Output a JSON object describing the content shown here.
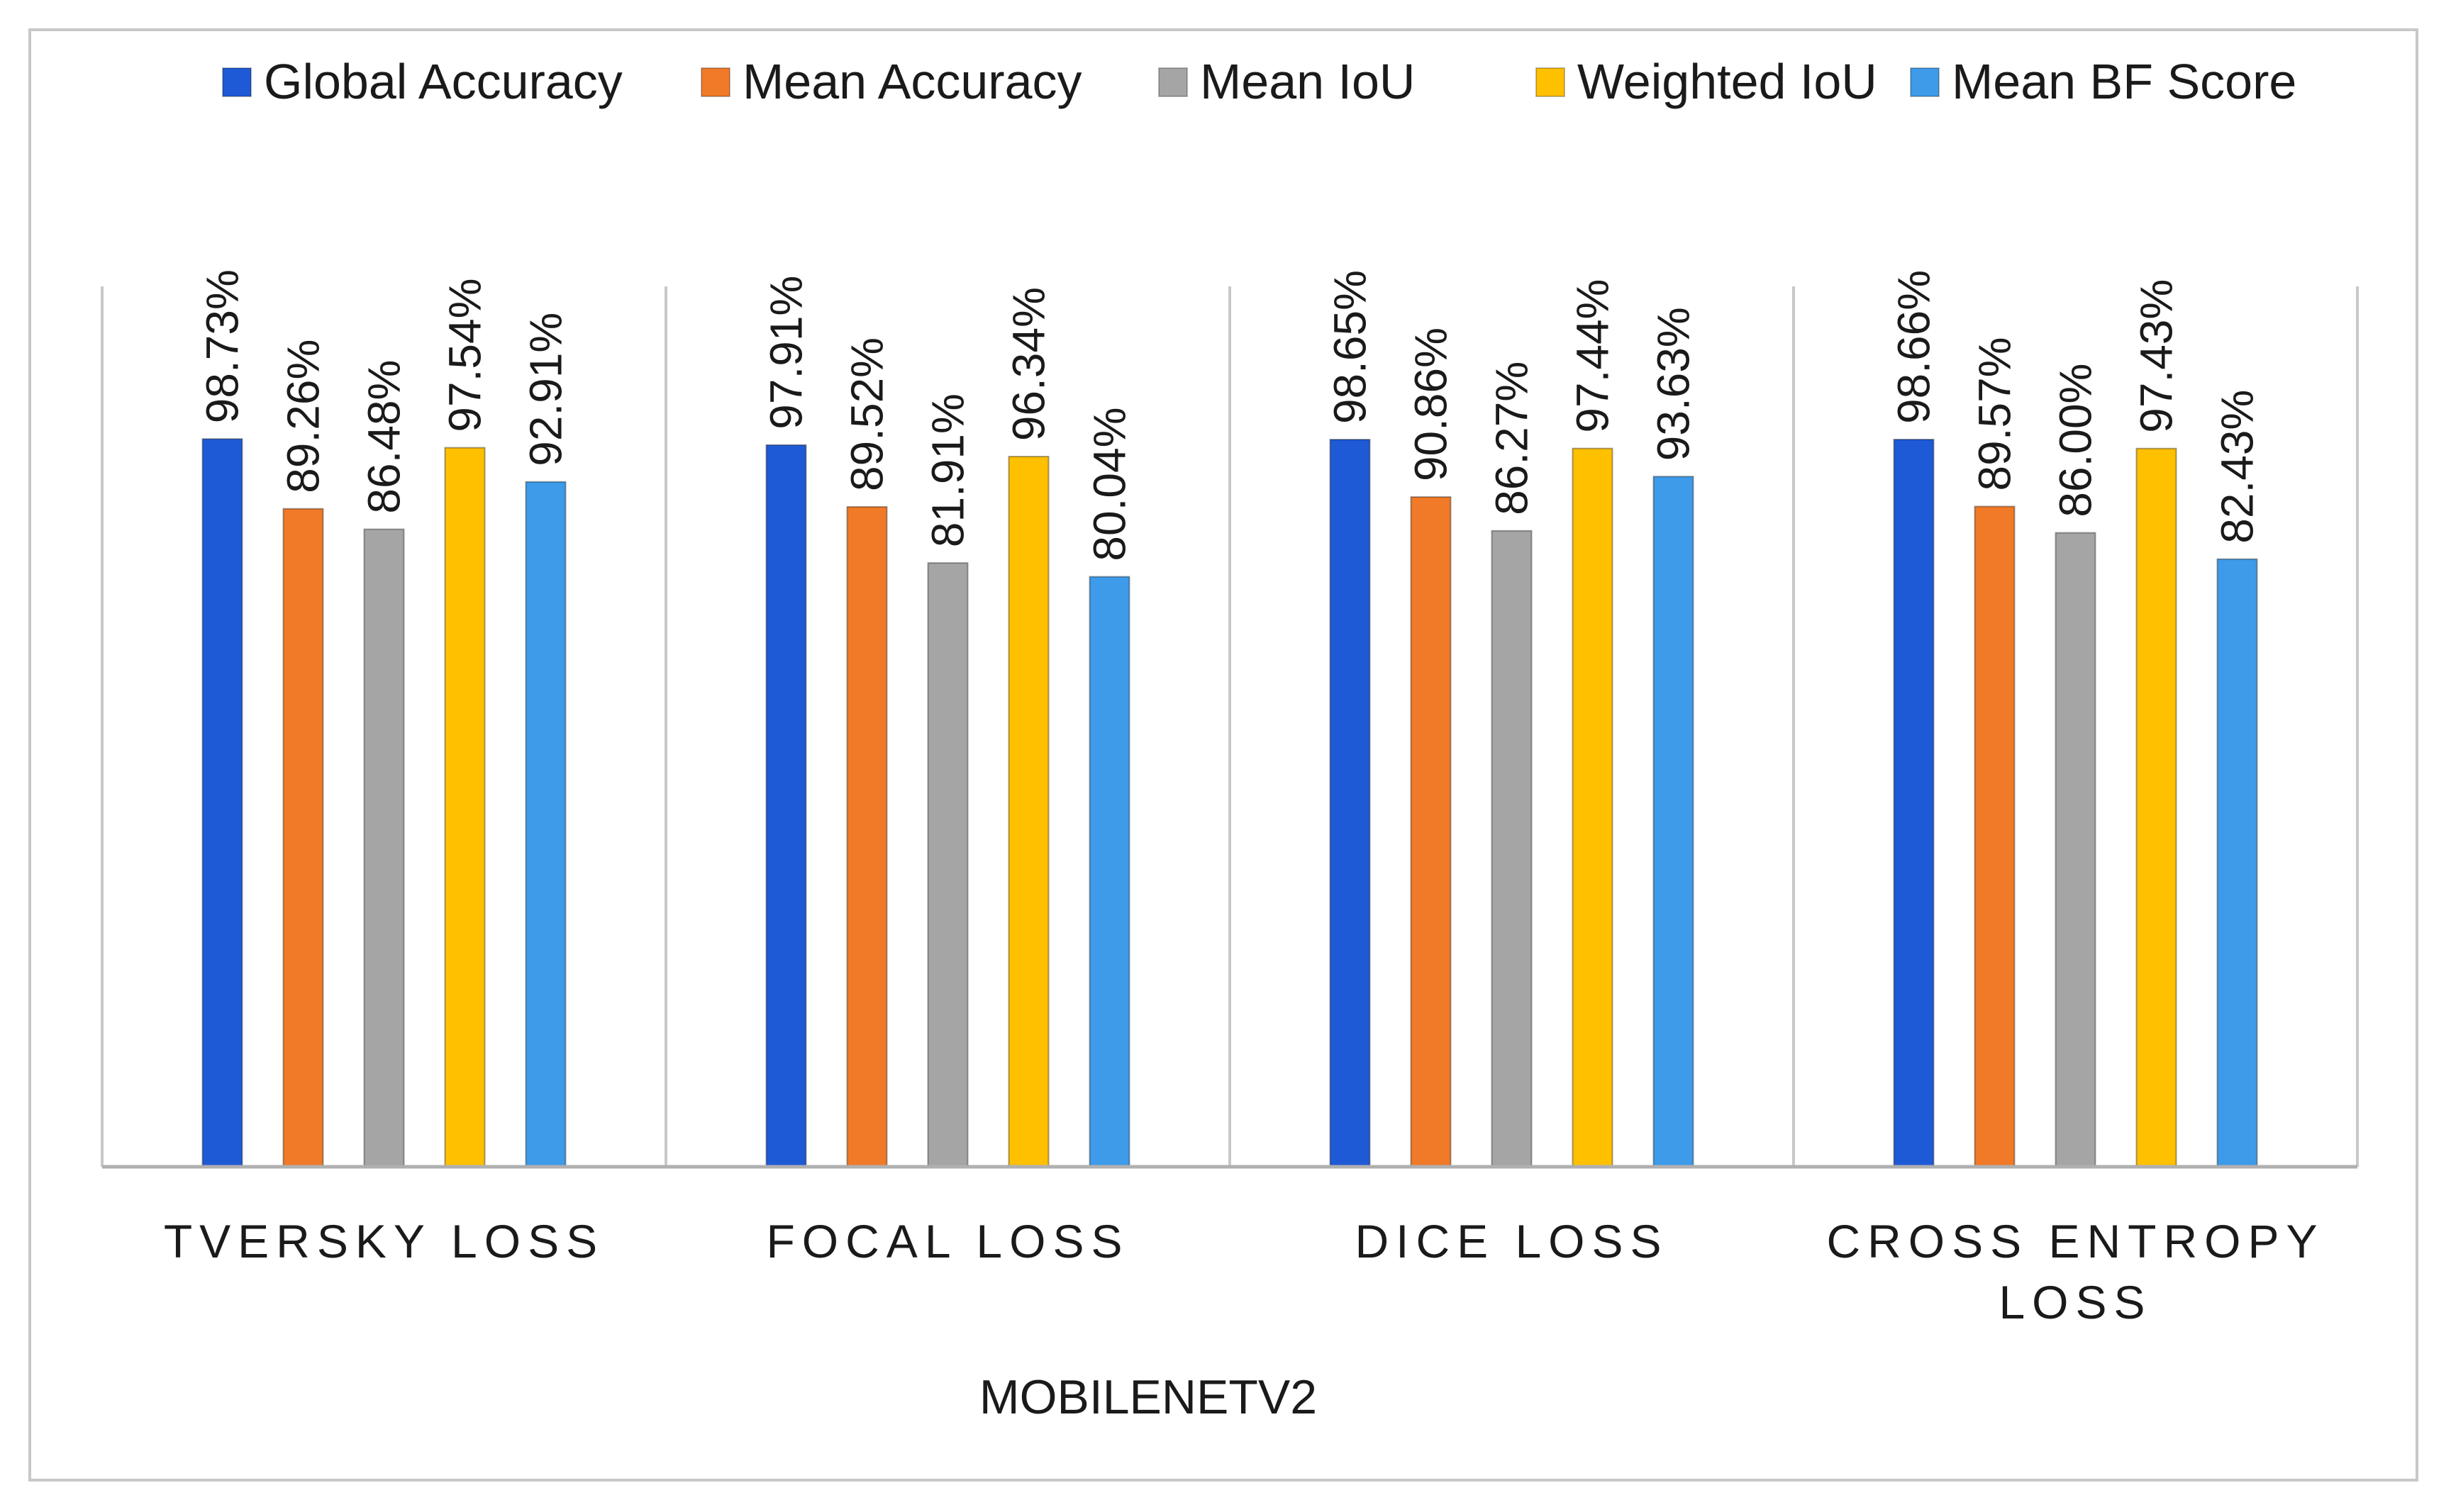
{
  "chart_data": {
    "type": "bar",
    "title": "",
    "xlabel": "MOBILENETV2",
    "ylabel": "",
    "ylim": [
      0,
      100
    ],
    "grid": false,
    "legend_position": "top",
    "categories": [
      "TVERSKY LOSS",
      "FOCAL LOSS",
      "DICE LOSS",
      "CROSS ENTROPY LOSS"
    ],
    "series": [
      {
        "name": "Global Accuracy",
        "color": "#1f5ad6",
        "values": [
          98.73,
          97.91,
          98.65,
          98.66
        ],
        "labels": [
          "98.73%",
          "97.91%",
          "98.65%",
          "98.66%"
        ]
      },
      {
        "name": "Mean Accuracy",
        "color": "#f07a28",
        "values": [
          89.26,
          89.52,
          90.86,
          89.57
        ],
        "labels": [
          "89.26%",
          "89.52%",
          "90.86%",
          "89.57%"
        ]
      },
      {
        "name": "Mean IoU",
        "color": "#a5a5a5",
        "values": [
          86.48,
          81.91,
          86.27,
          86.0
        ],
        "labels": [
          "86.48%",
          "81.91%",
          "86.27%",
          "86.00%"
        ]
      },
      {
        "name": "Weighted IoU",
        "color": "#ffc000",
        "values": [
          97.54,
          96.34,
          97.44,
          97.43
        ],
        "labels": [
          "97.54%",
          "96.34%",
          "97.44%",
          "97.43%"
        ]
      },
      {
        "name": "Mean BF Score",
        "color": "#3d9be9",
        "values": [
          92.91,
          80.04,
          93.63,
          82.43
        ],
        "labels": [
          "92.91%",
          "80.04%",
          "93.63%",
          "82.43%"
        ]
      }
    ]
  }
}
